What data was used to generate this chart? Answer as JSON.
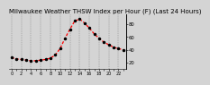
{
  "title": "Milwaukee Weather THSW Index per Hour (F) (Last 24 Hours)",
  "hours": [
    0,
    1,
    2,
    3,
    4,
    5,
    6,
    7,
    8,
    9,
    10,
    11,
    12,
    13,
    14,
    15,
    16,
    17,
    18,
    19,
    20,
    21,
    22,
    23
  ],
  "values": [
    28,
    26,
    25,
    24,
    23,
    23,
    24,
    25,
    27,
    32,
    42,
    58,
    72,
    85,
    88,
    82,
    74,
    65,
    58,
    52,
    48,
    44,
    42,
    40
  ],
  "line_color": "#ff0000",
  "marker_color": "#000000",
  "bg_color": "#d4d4d4",
  "plot_bg": "#d4d4d4",
  "ylim_min": 10,
  "ylim_max": 95,
  "ytick_values": [
    20,
    40,
    60,
    80
  ],
  "ytick_labels": [
    "20",
    "40",
    "60",
    "80"
  ],
  "grid_color": "#777777",
  "title_fontsize": 5.0,
  "tick_fontsize": 3.8,
  "line_width": 0.9,
  "marker_size": 1.5,
  "grid_lw": 0.35
}
